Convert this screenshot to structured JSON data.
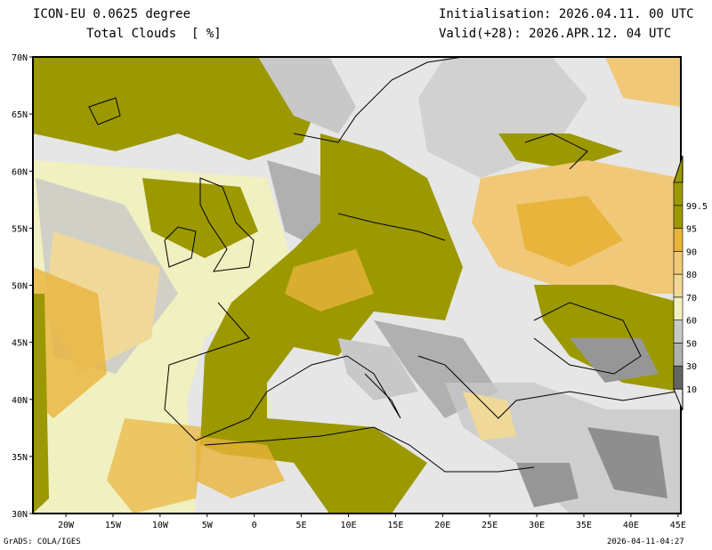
{
  "header": {
    "model": "ICON-EU 0.0625 degree",
    "variable": "Total Clouds  [ %]",
    "init": "Initialisation: 2026.04.11. 00 UTC",
    "valid": "Valid(+28): 2026.APR.12. 04 UTC"
  },
  "footer": {
    "credit": "GrADS: COLA/IGES",
    "timestamp": "2026-04-11-04:27"
  },
  "axes": {
    "lat_ticks": [
      {
        "v": 30,
        "label": "30N"
      },
      {
        "v": 35,
        "label": "35N"
      },
      {
        "v": 40,
        "label": "40N"
      },
      {
        "v": 45,
        "label": "45N"
      },
      {
        "v": 50,
        "label": "50N"
      },
      {
        "v": 55,
        "label": "55N"
      },
      {
        "v": 60,
        "label": "60N"
      },
      {
        "v": 65,
        "label": "65N"
      },
      {
        "v": 70,
        "label": "70N"
      }
    ],
    "lon_ticks": [
      {
        "v": -20,
        "label": "20W"
      },
      {
        "v": -15,
        "label": "15W"
      },
      {
        "v": -10,
        "label": "10W"
      },
      {
        "v": -5,
        "label": "5W"
      },
      {
        "v": 0,
        "label": "0"
      },
      {
        "v": 5,
        "label": "5E"
      },
      {
        "v": 10,
        "label": "10E"
      },
      {
        "v": 15,
        "label": "15E"
      },
      {
        "v": 20,
        "label": "20E"
      },
      {
        "v": 25,
        "label": "25E"
      },
      {
        "v": 30,
        "label": "30E"
      },
      {
        "v": 35,
        "label": "35E"
      },
      {
        "v": 40,
        "label": "40E"
      },
      {
        "v": 45,
        "label": "45E"
      }
    ],
    "lat_range": [
      30,
      70
    ],
    "lon_range": [
      -23.5,
      45.3
    ]
  },
  "legend": {
    "levels": [
      {
        "label": "10",
        "color": "#646464"
      },
      {
        "label": "30",
        "color": "#969696"
      },
      {
        "label": "50",
        "color": "#b0b0b0"
      },
      {
        "label": "60",
        "color": "#c8c8c8"
      },
      {
        "label": "70",
        "color": "#f0f0c0"
      },
      {
        "label": "80",
        "color": "#f0d898"
      },
      {
        "label": "90",
        "color": "#f0c878"
      },
      {
        "label": "95",
        "color": "#e8b43c"
      },
      {
        "label": "99.5",
        "color": "#9c9800"
      }
    ],
    "below_color": "#e6e6e6",
    "above_color": "#9c9800"
  }
}
